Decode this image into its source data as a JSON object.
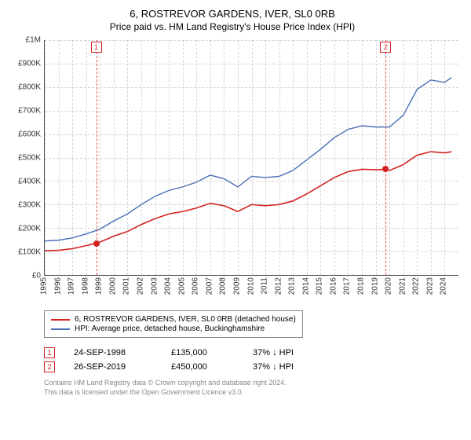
{
  "title": "6, ROSTREVOR GARDENS, IVER, SL0 0RB",
  "subtitle": "Price paid vs. HM Land Registry's House Price Index (HPI)",
  "chart": {
    "type": "line",
    "background_color": "#ffffff",
    "grid_color": "#999999",
    "axis_color": "#555555",
    "y": {
      "min": 0,
      "max": 1000000,
      "ticks": [
        0,
        100000,
        200000,
        300000,
        400000,
        500000,
        600000,
        700000,
        800000,
        900000,
        1000000
      ],
      "labels": [
        "£0",
        "£100K",
        "£200K",
        "£300K",
        "£400K",
        "£500K",
        "£600K",
        "£700K",
        "£800K",
        "£900K",
        "£1M"
      ],
      "fontsize": 10
    },
    "x": {
      "min": 1995,
      "max": 2025,
      "ticks": [
        1995,
        1996,
        1997,
        1998,
        1999,
        2000,
        2001,
        2002,
        2003,
        2004,
        2005,
        2006,
        2007,
        2008,
        2009,
        2010,
        2011,
        2012,
        2013,
        2014,
        2015,
        2016,
        2017,
        2018,
        2019,
        2020,
        2021,
        2022,
        2023,
        2024
      ],
      "fontsize": 10
    },
    "series": [
      {
        "id": "property",
        "label": "6, ROSTREVOR GARDENS, IVER, SL0 0RB (detached house)",
        "color": "#d62020",
        "line_width": 1.6,
        "data": [
          [
            1995,
            103000
          ],
          [
            1996,
            105000
          ],
          [
            1997,
            112000
          ],
          [
            1998,
            125000
          ],
          [
            1998.73,
            135000
          ],
          [
            1999,
            140000
          ],
          [
            2000,
            165000
          ],
          [
            2001,
            185000
          ],
          [
            2002,
            215000
          ],
          [
            2003,
            240000
          ],
          [
            2004,
            260000
          ],
          [
            2005,
            270000
          ],
          [
            2006,
            285000
          ],
          [
            2007,
            305000
          ],
          [
            2008,
            295000
          ],
          [
            2009,
            270000
          ],
          [
            2010,
            300000
          ],
          [
            2011,
            295000
          ],
          [
            2012,
            300000
          ],
          [
            2013,
            315000
          ],
          [
            2014,
            345000
          ],
          [
            2015,
            380000
          ],
          [
            2016,
            415000
          ],
          [
            2017,
            440000
          ],
          [
            2018,
            450000
          ],
          [
            2019,
            448000
          ],
          [
            2019.73,
            450000
          ],
          [
            2020,
            445000
          ],
          [
            2021,
            470000
          ],
          [
            2022,
            510000
          ],
          [
            2023,
            525000
          ],
          [
            2024,
            520000
          ],
          [
            2024.5,
            525000
          ]
        ]
      },
      {
        "id": "hpi",
        "label": "HPI: Average price, detached house, Buckinghamshire",
        "color": "#4a6fb8",
        "line_width": 1.4,
        "data": [
          [
            1995,
            145000
          ],
          [
            1996,
            148000
          ],
          [
            1997,
            158000
          ],
          [
            1998,
            175000
          ],
          [
            1999,
            195000
          ],
          [
            2000,
            230000
          ],
          [
            2001,
            260000
          ],
          [
            2002,
            300000
          ],
          [
            2003,
            335000
          ],
          [
            2004,
            360000
          ],
          [
            2005,
            375000
          ],
          [
            2006,
            395000
          ],
          [
            2007,
            425000
          ],
          [
            2008,
            410000
          ],
          [
            2009,
            375000
          ],
          [
            2010,
            420000
          ],
          [
            2011,
            415000
          ],
          [
            2012,
            420000
          ],
          [
            2013,
            445000
          ],
          [
            2014,
            490000
          ],
          [
            2015,
            535000
          ],
          [
            2016,
            585000
          ],
          [
            2017,
            620000
          ],
          [
            2018,
            635000
          ],
          [
            2019,
            630000
          ],
          [
            2020,
            630000
          ],
          [
            2021,
            680000
          ],
          [
            2022,
            790000
          ],
          [
            2023,
            830000
          ],
          [
            2024,
            820000
          ],
          [
            2024.5,
            840000
          ]
        ]
      }
    ],
    "markers": [
      {
        "n": "1",
        "year": 1998.73,
        "value": 135000,
        "color": "#d62020"
      },
      {
        "n": "2",
        "year": 2019.73,
        "value": 450000,
        "color": "#d62020"
      }
    ]
  },
  "events": [
    {
      "n": "1",
      "date": "24-SEP-1998",
      "price": "£135,000",
      "delta": "37% ↓ HPI",
      "color": "#d62020"
    },
    {
      "n": "2",
      "date": "26-SEP-2019",
      "price": "£450,000",
      "delta": "37% ↓ HPI",
      "color": "#d62020"
    }
  ],
  "credits": {
    "line1": "Contains HM Land Registry data © Crown copyright and database right 2024.",
    "line2": "This data is licensed under the Open Government Licence v3.0."
  }
}
